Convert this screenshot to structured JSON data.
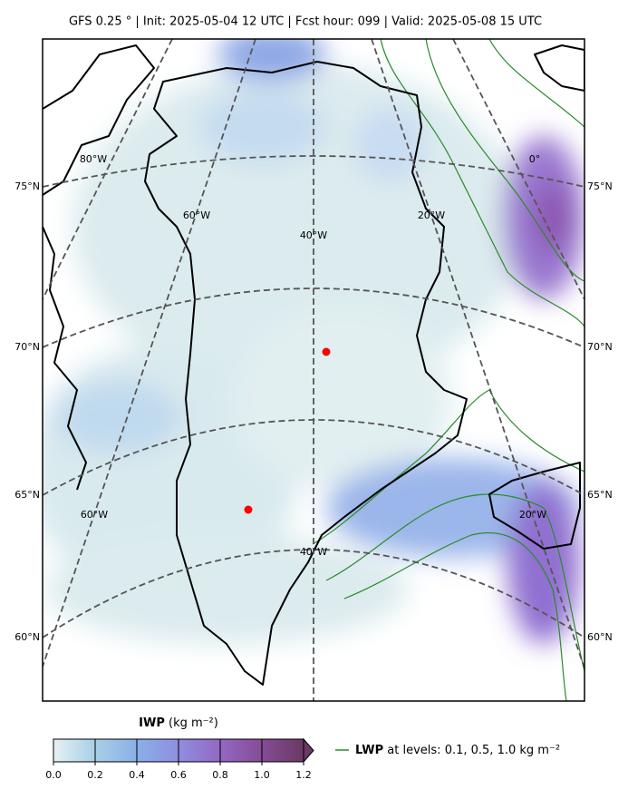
{
  "header": {
    "title": "GFS 0.25 ° | Init: 2025-05-04 12 UTC | Fcst hour: 099 | Valid: 2025-05-08 15 UTC"
  },
  "map": {
    "lat_labels_left": [
      "75°N",
      "70°N",
      "65°N",
      "60°N"
    ],
    "lat_labels_right": [
      "75°N",
      "70°N",
      "65°N",
      "60°N"
    ],
    "lon_labels": [
      "80°W",
      "0°",
      "60°W",
      "40°W",
      "20°W",
      "60°W",
      "40°W",
      "20°W"
    ]
  },
  "colorbar": {
    "label_bold": "IWP",
    "label_unit": "(kg m⁻²)",
    "ticks": [
      {
        "value": 0,
        "label": "0.0"
      },
      {
        "value": 0.2,
        "label": "0.2"
      },
      {
        "value": 0.4,
        "label": "0.4"
      },
      {
        "value": 0.6,
        "label": "0.6"
      },
      {
        "value": 0.8,
        "label": "0.8"
      },
      {
        "value": 1,
        "label": "1.0"
      },
      {
        "value": 1.2,
        "label": "1.2"
      }
    ],
    "colors": [
      "#e6f1f3",
      "#a8cfe6",
      "#8ab0e8",
      "#8f8ee0",
      "#9468c4",
      "#844c96",
      "#6a3a63"
    ]
  },
  "legend": {
    "name": "LWP",
    "text": "at levels: 0.1, 0.5, 1.0  kg m⁻²",
    "color": "#2a8c2a"
  }
}
